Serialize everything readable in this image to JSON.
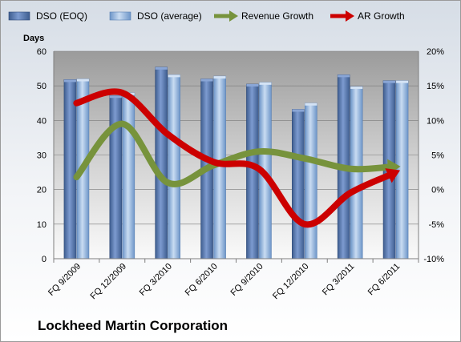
{
  "chart_data": {
    "type": "bar",
    "title": "Lockheed Martin Corporation",
    "ylabel": "Days",
    "categories": [
      "FQ 9/2009",
      "FQ 12/2009",
      "FQ 3/2010",
      "FQ 6/2010",
      "FQ 9/2010",
      "FQ 12/2010",
      "FQ 3/2011",
      "FQ 6/2011"
    ],
    "ylim": [
      0,
      60
    ],
    "y_ticks": [
      "0",
      "10",
      "20",
      "30",
      "40",
      "50",
      "60"
    ],
    "y2lim": [
      -10,
      20
    ],
    "y2_ticks": [
      "-10%",
      "-5%",
      "0%",
      "5%",
      "10%",
      "15%",
      "20%"
    ],
    "series": [
      {
        "name": "DSO (EOQ)",
        "type": "bar",
        "axis": "left",
        "color": "#4f6fa3",
        "values": [
          51.8,
          47.2,
          55.4,
          52.0,
          50.5,
          43.2,
          53.2,
          51.5
        ]
      },
      {
        "name": "DSO (average)",
        "type": "bar",
        "axis": "left",
        "color": "#8fb4e0",
        "values": [
          52.0,
          48.0,
          53.2,
          52.8,
          51.0,
          45.0,
          49.8,
          51.5
        ]
      },
      {
        "name": "Revenue Growth",
        "type": "line",
        "axis": "right",
        "color": "#77933c",
        "values": [
          1.8,
          9.5,
          1.0,
          3.5,
          5.5,
          4.5,
          3.0,
          3.3
        ]
      },
      {
        "name": "AR Growth",
        "type": "line",
        "axis": "right",
        "color": "#cc0000",
        "values": [
          12.5,
          14.0,
          8.0,
          4.0,
          3.0,
          -5.0,
          -0.5,
          2.5
        ]
      }
    ],
    "grid": true,
    "legend": "top"
  }
}
